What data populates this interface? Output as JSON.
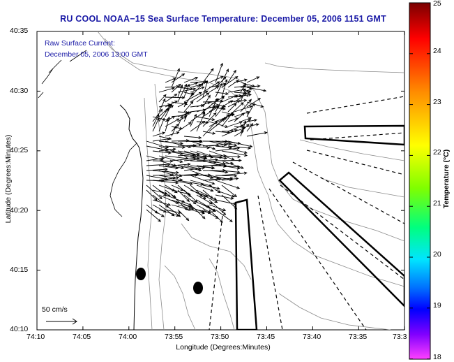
{
  "title": "RU COOL  NOAA−15  Sea Surface Temperature:  December 05, 2006 1151 GMT",
  "current_label": "Raw Surface Current:",
  "current_time": "December 05, 2006 13:00 GMT",
  "scale_label": "50 cm/s",
  "axes": {
    "xlabel": "Longitude (Degrees:Minutes)",
    "ylabel": "Latitude (Degrees:Minutes)",
    "xticks": [
      "74:10",
      "74:05",
      "74:00",
      "73:55",
      "73:50",
      "73:45",
      "73:40",
      "73:35",
      "73:3"
    ],
    "yticks": [
      "40:35",
      "40:30",
      "40:25",
      "40:20",
      "40:15",
      "40:10"
    ]
  },
  "colorbar": {
    "label": "Temperature (°C)",
    "ticks": [
      "25",
      "24",
      "23",
      "22",
      "21",
      "20",
      "19",
      "18"
    ],
    "colors": [
      "#7a0000",
      "#ff0000",
      "#ff8c00",
      "#ffff00",
      "#7fff00",
      "#00ff7f",
      "#00e5ff",
      "#0070ff",
      "#0000ff",
      "#8000ff",
      "#ff40ff"
    ]
  },
  "colors": {
    "title_text": "#1a1aa6",
    "land": "#ffffff",
    "contour": "#8a8a8a",
    "vectors": "#000000"
  }
}
